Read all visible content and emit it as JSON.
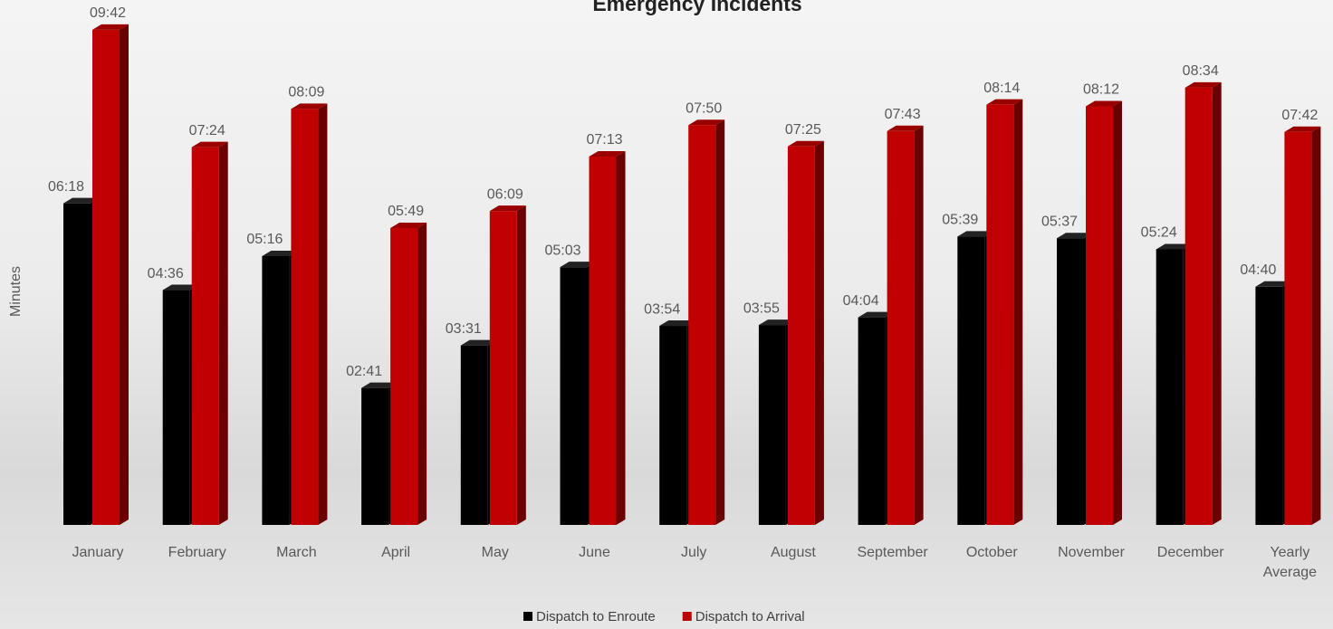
{
  "chart_data": {
    "type": "bar3d",
    "title": "Emergency Incidents",
    "y_label": "Minutes",
    "categories": [
      "January",
      "February",
      "March",
      "April",
      "May",
      "June",
      "July",
      "August",
      "September",
      "October",
      "November",
      "December",
      "Yearly Average"
    ],
    "series": [
      {
        "name": "Dispatch to Enroute",
        "color": "#000000",
        "values": [
          6.3,
          4.6,
          5.2667,
          2.6833,
          3.5167,
          5.05,
          3.9,
          3.9167,
          4.0667,
          5.65,
          5.6167,
          5.4,
          4.6667
        ],
        "value_labels": [
          "06:18",
          "04:36",
          "05:16",
          "02:41",
          "03:31",
          "05:03",
          "03:54",
          "03:55",
          "04:04",
          "05:39",
          "05:37",
          "05:24",
          "04:40"
        ]
      },
      {
        "name": "Dispatch to Arrival",
        "color": "#c00000",
        "values": [
          9.7,
          7.4,
          8.15,
          5.8167,
          6.15,
          7.2167,
          7.8333,
          7.4167,
          7.7167,
          8.2333,
          8.2,
          8.5667,
          7.7
        ],
        "value_labels": [
          "09:42",
          "07:24",
          "08:09",
          "05:49",
          "06:09",
          "07:13",
          "07:50",
          "07:25",
          "07:43",
          "08:14",
          "08:12",
          "08:34",
          "07:42"
        ]
      }
    ],
    "legend": "bottom"
  }
}
